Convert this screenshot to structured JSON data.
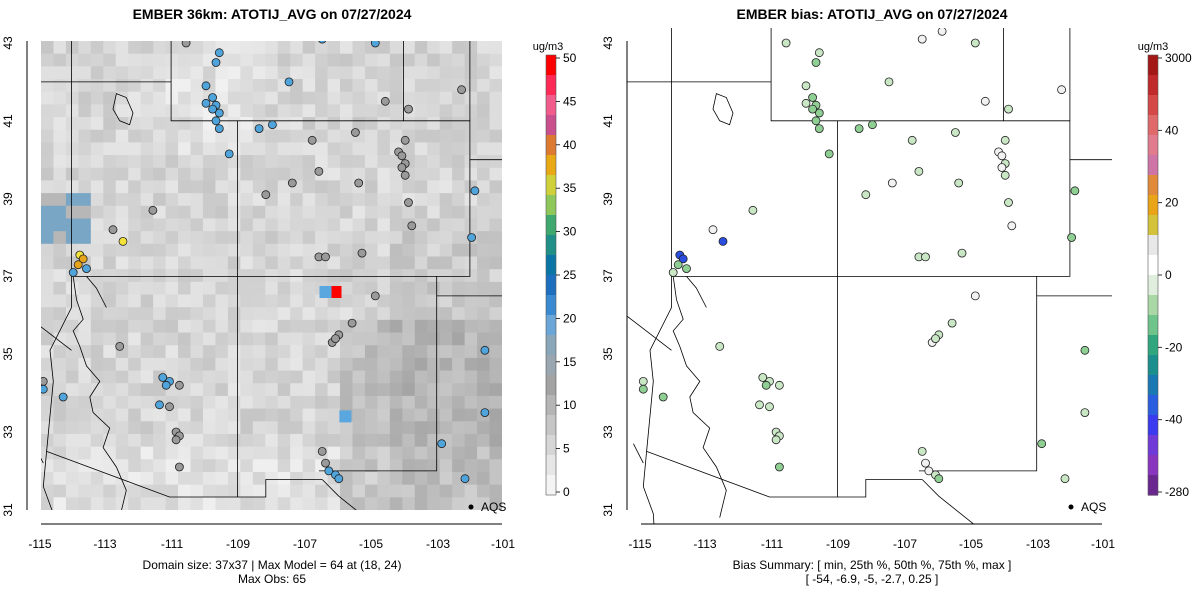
{
  "left_panel": {
    "title": "EMBER 36km: ATOTIJ_AVG on 07/27/2024",
    "x_ticks": [
      "-115",
      "-113",
      "-111",
      "-109",
      "-107",
      "-105",
      "-103",
      "-101"
    ],
    "y_ticks": [
      "43",
      "41",
      "39",
      "37",
      "35",
      "33",
      "31"
    ],
    "colorbar": {
      "unit": "ug/m3",
      "ticks": [
        "50",
        "45",
        "40",
        "35",
        "30",
        "25",
        "20",
        "15",
        "10",
        "5",
        "0"
      ],
      "colors": [
        "#ff0000",
        "#ff2a55",
        "#f15c8c",
        "#c9508d",
        "#de7a2f",
        "#e9a917",
        "#cfd03a",
        "#8fc85a",
        "#3fa86e",
        "#1f8f88",
        "#0a76a6",
        "#1c6fbf",
        "#3a8ad2",
        "#6aa6d8",
        "#8aa6b9",
        "#9aa7b0",
        "#a3a3a3",
        "#b5b5b5",
        "#c6c6c6",
        "#d6d6d6",
        "#e6e6e6",
        "#f4f4f4"
      ]
    },
    "legend_label": "AQS",
    "footer_line1": "Domain size: 37x37 | Max Model = 64 at (18, 24)",
    "footer_line2": "Max Obs: 65"
  },
  "right_panel": {
    "title": "EMBER bias: ATOTIJ_AVG on 07/27/2024",
    "x_ticks": [
      "-115",
      "-113",
      "-111",
      "-109",
      "-107",
      "-105",
      "-103",
      "-101"
    ],
    "y_ticks": [
      "43",
      "41",
      "39",
      "37",
      "35",
      "33",
      "31"
    ],
    "colorbar": {
      "unit": "ug/m3",
      "ticks": [
        "3000",
        "40",
        "20",
        "0",
        "-20",
        "-40",
        "-280"
      ],
      "colors": [
        "#a31717",
        "#c12a2a",
        "#d54848",
        "#e06a6a",
        "#e07c8e",
        "#cf75a5",
        "#e08a3a",
        "#e9a417",
        "#d4c23a",
        "#e8e8e8",
        "#ffffff",
        "#dfeedd",
        "#a9d8a6",
        "#6ec48a",
        "#2fa67d",
        "#1b8f8e",
        "#1a79b3",
        "#2a5ee0",
        "#3a3aee",
        "#6f3ad8",
        "#8a35c0",
        "#6a2790"
      ]
    },
    "legend_label": "AQS",
    "footer_line1": "Bias Summary: [ min, 25th %, 50th %, 75th %, max ]",
    "footer_line2": "[ -54,   -6.9,   -5,   -2.7,   0.25 ]"
  }
}
